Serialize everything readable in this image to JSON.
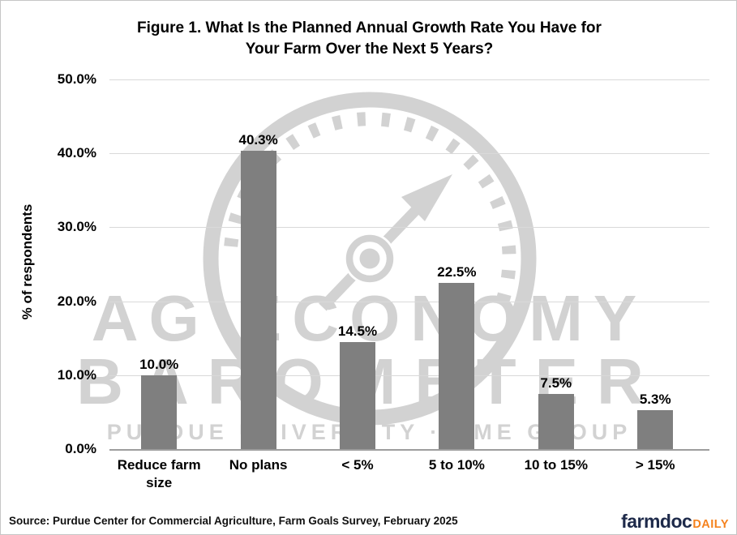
{
  "title": {
    "line1": "Figure 1. What Is the Planned Annual Growth Rate You Have for",
    "line2": "Your Farm Over the Next 5 Years?"
  },
  "y_axis": {
    "title": "% of respondents",
    "ticks": [
      "0.0%",
      "10.0%",
      "20.0%",
      "30.0%",
      "40.0%",
      "50.0%"
    ]
  },
  "chart_data": {
    "type": "bar",
    "categories": [
      "Reduce farm size",
      "No plans",
      "< 5%",
      "5 to 10%",
      "10 to 15%",
      "> 15%"
    ],
    "values": [
      10.0,
      40.3,
      14.5,
      22.5,
      7.5,
      5.3
    ],
    "value_labels": [
      "10.0%",
      "40.3%",
      "14.5%",
      "22.5%",
      "7.5%",
      "5.3%"
    ],
    "title": "Figure 1. What Is the Planned Annual Growth Rate You Have for Your Farm Over the Next 5 Years?",
    "xlabel": "",
    "ylabel": "% of respondents",
    "ylim": [
      0,
      50
    ],
    "ytick_step": 10,
    "grid": true,
    "legend": false,
    "bar_color": "#7f7f7f"
  },
  "watermark": {
    "line1": "AG ECONOMY",
    "line2": "BAROMETER",
    "line3": "PURDUE UNIVERSITY · CME GROUP",
    "color": "#d2d2d2"
  },
  "footer": {
    "source": "Source: Purdue Center for Commercial Agriculture, Farm Goals Survey, February 2025",
    "logo": {
      "part1": "farmdoc",
      "part2": "DAILY",
      "navy": "#1e2a4a",
      "orange": "#f5821e"
    }
  }
}
